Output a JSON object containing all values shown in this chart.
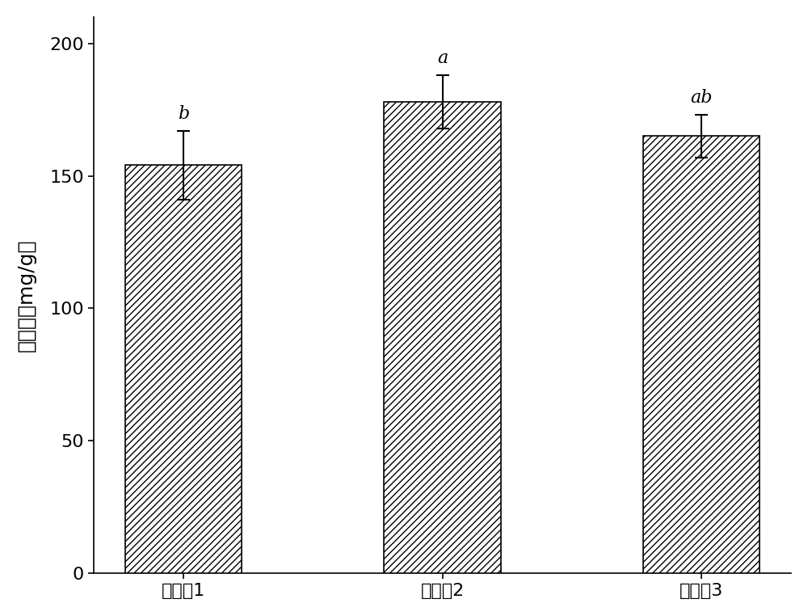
{
  "categories": [
    "实施例1",
    "实施例2",
    "实施例3"
  ],
  "values": [
    154.0,
    178.0,
    165.0
  ],
  "errors": [
    13.0,
    10.0,
    8.0
  ],
  "sig_labels": [
    "b",
    "a",
    "ab"
  ],
  "ylabel": "接枝率（mg/g）",
  "ylim": [
    0,
    210
  ],
  "yticks": [
    0,
    50,
    100,
    150,
    200
  ],
  "bar_color": "#ffffff",
  "bar_edgecolor": "#000000",
  "hatch": "////",
  "hatch_color": "#000000",
  "bar_width": 0.45,
  "figsize": [
    10.0,
    7.62
  ],
  "dpi": 100,
  "title_fontsize": 16,
  "label_fontsize": 18,
  "tick_fontsize": 16,
  "sig_fontsize": 16,
  "error_capsize": 6,
  "error_linewidth": 1.5,
  "spine_linewidth": 1.2
}
